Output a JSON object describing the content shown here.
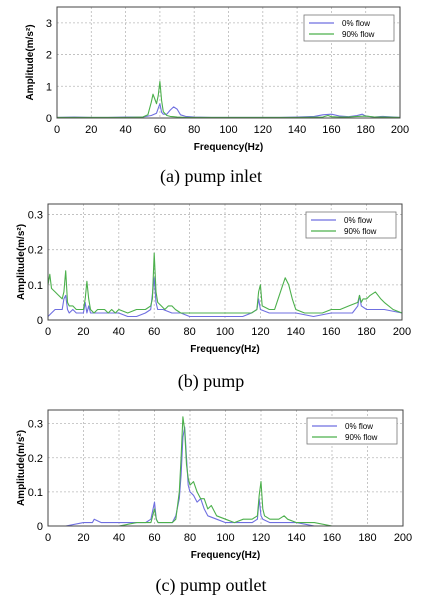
{
  "chart_data": [
    {
      "type": "line",
      "caption": "(a)  pump  inlet",
      "xlabel": "Frequency(Hz)",
      "ylabel": "Amplitude(m/s²)",
      "xlim": [
        0,
        200
      ],
      "ylim": [
        0,
        3.5
      ],
      "xticks": [
        "0",
        "20",
        "40",
        "60",
        "80",
        "100",
        "120",
        "140",
        "160",
        "180",
        "200"
      ],
      "yticks": [
        "0",
        "1",
        "2",
        "3"
      ],
      "grid": true,
      "legend_position": "top-right",
      "series": [
        {
          "name": "0% flow",
          "color": "#6f6fe0",
          "x": [
            0,
            10,
            20,
            30,
            40,
            50,
            55,
            58,
            60,
            61,
            62,
            64,
            66,
            68,
            70,
            72,
            75,
            80,
            90,
            100,
            110,
            120,
            130,
            140,
            150,
            155,
            160,
            165,
            170,
            175,
            178,
            180,
            185,
            190,
            200
          ],
          "y": [
            0.02,
            0.03,
            0.02,
            0.02,
            0.03,
            0.03,
            0.08,
            0.15,
            0.45,
            0.18,
            0.12,
            0.12,
            0.25,
            0.35,
            0.28,
            0.1,
            0.05,
            0.03,
            0.02,
            0.02,
            0.02,
            0.02,
            0.02,
            0.03,
            0.05,
            0.1,
            0.12,
            0.06,
            0.04,
            0.08,
            0.12,
            0.06,
            0.03,
            0.05,
            0.02
          ]
        },
        {
          "name": "90% flow",
          "color": "#4cb04c",
          "x": [
            0,
            10,
            20,
            30,
            40,
            50,
            53,
            55,
            56,
            57,
            58,
            59,
            60,
            61,
            62,
            64,
            66,
            68,
            70,
            75,
            80,
            90,
            100,
            120,
            140,
            155,
            158,
            160,
            165,
            170,
            175,
            180,
            185,
            190,
            200
          ],
          "y": [
            0.02,
            0.02,
            0.02,
            0.02,
            0.02,
            0.03,
            0.1,
            0.5,
            0.75,
            0.6,
            0.45,
            0.7,
            1.15,
            0.55,
            0.2,
            0.08,
            0.05,
            0.04,
            0.03,
            0.02,
            0.02,
            0.02,
            0.02,
            0.02,
            0.02,
            0.03,
            0.08,
            0.04,
            0.03,
            0.03,
            0.05,
            0.06,
            0.03,
            0.03,
            0.02
          ]
        }
      ]
    },
    {
      "type": "line",
      "caption": "(b)  pump",
      "xlabel": "Frequency(Hz)",
      "ylabel": "Amplitude(m/s²)",
      "xlim": [
        0,
        200
      ],
      "ylim": [
        0,
        0.33
      ],
      "xticks": [
        "0",
        "20",
        "40",
        "60",
        "80",
        "100",
        "120",
        "140",
        "160",
        "180",
        "200"
      ],
      "yticks": [
        "0",
        "0.1",
        "0.2",
        "0.3"
      ],
      "grid": true,
      "legend_position": "top-right",
      "series": [
        {
          "name": "0% flow",
          "color": "#6f6fe0",
          "x": [
            0,
            2,
            4,
            6,
            8,
            9,
            10,
            11,
            12,
            14,
            16,
            18,
            20,
            21,
            22,
            23,
            24,
            26,
            30,
            35,
            40,
            45,
            50,
            55,
            58,
            60,
            61,
            62,
            65,
            70,
            75,
            80,
            90,
            100,
            110,
            115,
            118,
            119,
            120,
            125,
            130,
            135,
            140,
            150,
            160,
            165,
            170,
            172,
            175,
            176,
            177,
            180,
            185,
            190,
            200
          ],
          "y": [
            0.01,
            0.02,
            0.03,
            0.03,
            0.03,
            0.06,
            0.07,
            0.03,
            0.02,
            0.03,
            0.02,
            0.02,
            0.02,
            0.05,
            0.02,
            0.04,
            0.02,
            0.02,
            0.02,
            0.02,
            0.02,
            0.01,
            0.01,
            0.02,
            0.03,
            0.12,
            0.05,
            0.03,
            0.03,
            0.02,
            0.02,
            0.01,
            0.01,
            0.01,
            0.01,
            0.02,
            0.03,
            0.06,
            0.03,
            0.02,
            0.02,
            0.02,
            0.02,
            0.01,
            0.02,
            0.02,
            0.02,
            0.02,
            0.04,
            0.07,
            0.04,
            0.03,
            0.03,
            0.03,
            0.02
          ]
        },
        {
          "name": "90% flow",
          "color": "#4cb04c",
          "x": [
            0,
            1,
            2,
            4,
            6,
            8,
            9,
            10,
            11,
            12,
            14,
            16,
            18,
            20,
            21,
            22,
            23,
            24,
            26,
            28,
            30,
            32,
            34,
            36,
            38,
            40,
            45,
            50,
            55,
            58,
            59,
            60,
            61,
            62,
            64,
            66,
            68,
            70,
            72,
            75,
            80,
            85,
            90,
            95,
            100,
            105,
            110,
            115,
            118,
            119,
            120,
            121,
            125,
            128,
            130,
            132,
            134,
            136,
            138,
            140,
            145,
            150,
            155,
            160,
            165,
            170,
            175,
            176,
            177,
            178,
            180,
            182,
            185,
            188,
            190,
            195,
            200
          ],
          "y": [
            0.1,
            0.13,
            0.09,
            0.08,
            0.07,
            0.06,
            0.08,
            0.14,
            0.05,
            0.04,
            0.04,
            0.03,
            0.03,
            0.03,
            0.06,
            0.11,
            0.06,
            0.03,
            0.02,
            0.03,
            0.03,
            0.03,
            0.02,
            0.03,
            0.02,
            0.03,
            0.02,
            0.03,
            0.03,
            0.04,
            0.06,
            0.19,
            0.08,
            0.05,
            0.04,
            0.03,
            0.04,
            0.04,
            0.03,
            0.02,
            0.02,
            0.02,
            0.02,
            0.02,
            0.02,
            0.02,
            0.02,
            0.02,
            0.03,
            0.08,
            0.1,
            0.04,
            0.03,
            0.03,
            0.06,
            0.09,
            0.12,
            0.1,
            0.06,
            0.03,
            0.02,
            0.02,
            0.02,
            0.03,
            0.03,
            0.04,
            0.05,
            0.07,
            0.05,
            0.06,
            0.06,
            0.07,
            0.08,
            0.06,
            0.05,
            0.03,
            0.02
          ]
        }
      ]
    },
    {
      "type": "line",
      "caption": "(c)  pump  outlet",
      "xlabel": "Frequency(Hz)",
      "ylabel": "Amplitude(m/s²)",
      "xlim": [
        0,
        200
      ],
      "ylim": [
        0,
        0.34
      ],
      "xticks": [
        "0",
        "20",
        "40",
        "60",
        "80",
        "100",
        "120",
        "140",
        "160",
        "180",
        "200"
      ],
      "yticks": [
        "0",
        "0.1",
        "0.2",
        "0.3"
      ],
      "grid": true,
      "legend_position": "top-right",
      "series": [
        {
          "name": "0% flow",
          "color": "#6f6fe0",
          "x": [
            0,
            10,
            20,
            25,
            26,
            30,
            40,
            50,
            55,
            58,
            60,
            61,
            62,
            65,
            70,
            72,
            74,
            75,
            76,
            77,
            78,
            79,
            80,
            82,
            84,
            86,
            88,
            90,
            95,
            100,
            105,
            110,
            115,
            118,
            119,
            120,
            121,
            125,
            130,
            140,
            150,
            160,
            170,
            180,
            190,
            200
          ],
          "y": [
            0.0,
            0.0,
            0.01,
            0.01,
            0.02,
            0.01,
            0.01,
            0.01,
            0.01,
            0.02,
            0.07,
            0.02,
            0.01,
            0.01,
            0.01,
            0.03,
            0.08,
            0.15,
            0.26,
            0.29,
            0.2,
            0.12,
            0.1,
            0.09,
            0.07,
            0.08,
            0.05,
            0.03,
            0.02,
            0.01,
            0.01,
            0.01,
            0.01,
            0.02,
            0.08,
            0.03,
            0.02,
            0.01,
            0.01,
            0.01,
            0.0,
            0.0,
            0.0,
            0.0,
            0.0,
            0.0
          ]
        },
        {
          "name": "90% flow",
          "color": "#4cb04c",
          "x": [
            0,
            10,
            20,
            30,
            40,
            50,
            58,
            59,
            60,
            61,
            62,
            65,
            70,
            72,
            74,
            75,
            76,
            77,
            78,
            79,
            80,
            82,
            84,
            86,
            88,
            90,
            92,
            95,
            100,
            105,
            110,
            115,
            118,
            119,
            120,
            121,
            122,
            125,
            130,
            133,
            135,
            140,
            150,
            160,
            170,
            180,
            190,
            200
          ],
          "y": [
            0.0,
            0.0,
            0.0,
            0.0,
            0.0,
            0.01,
            0.01,
            0.03,
            0.05,
            0.02,
            0.01,
            0.01,
            0.01,
            0.02,
            0.1,
            0.2,
            0.32,
            0.28,
            0.18,
            0.14,
            0.12,
            0.13,
            0.1,
            0.08,
            0.08,
            0.05,
            0.06,
            0.03,
            0.02,
            0.01,
            0.02,
            0.02,
            0.03,
            0.09,
            0.13,
            0.05,
            0.03,
            0.02,
            0.02,
            0.03,
            0.02,
            0.01,
            0.01,
            0.0,
            0.0,
            0.0,
            0.0,
            0.0
          ]
        }
      ]
    }
  ]
}
